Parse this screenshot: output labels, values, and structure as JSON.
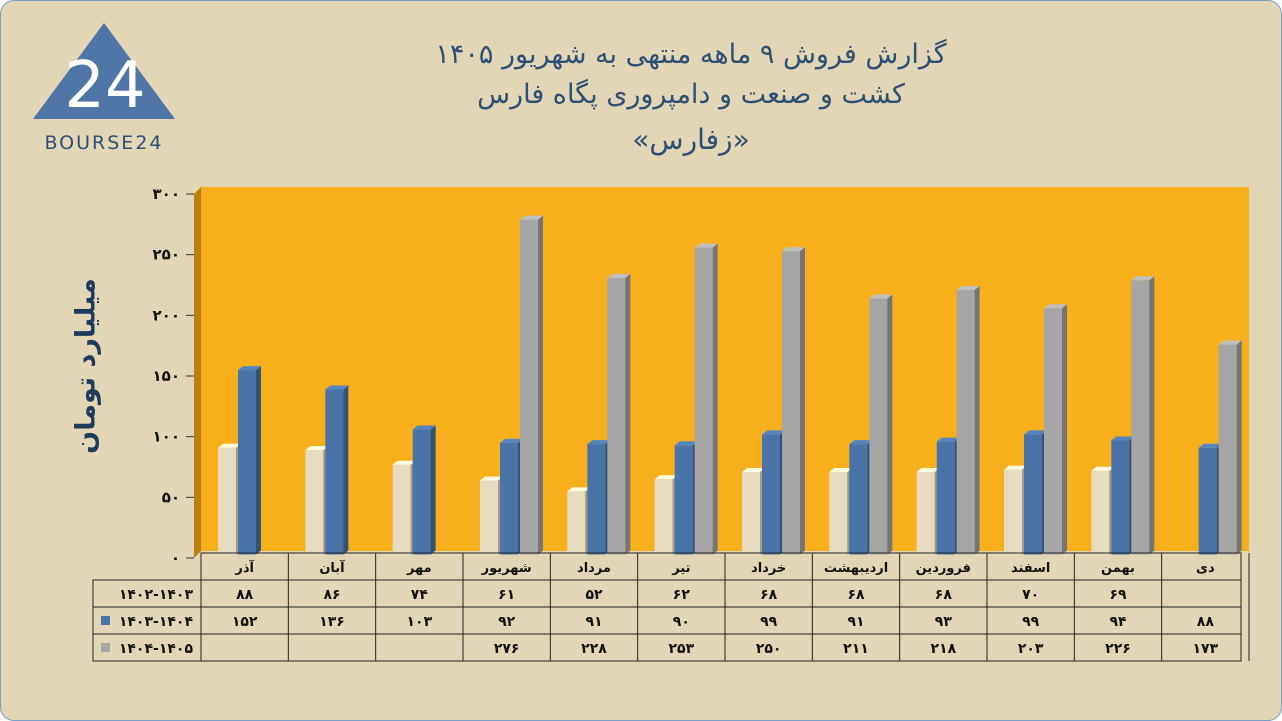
{
  "title": {
    "line1": "گزارش  فروش ۹ ماهه منتهی به شهریور ۱۴۰۵",
    "line2": "کشت و صنعت و دامپروری پگاه فارس",
    "line3": "«زفارس»"
  },
  "logo": {
    "text": "BOURSE24",
    "mark": "24"
  },
  "colors": {
    "background": "#e3d6b7",
    "plot_area": "#f7b01c",
    "series_2025": "#4a74a8",
    "series_2026": "#a6a6a6",
    "series_2024": "#e8dcc0",
    "title": "#2c4f74"
  },
  "chart_data": {
    "type": "bar",
    "ylabel": "میلیارد تومان",
    "ylim": [
      0,
      300
    ],
    "yticks": [
      0,
      50,
      100,
      150,
      200,
      250,
      300
    ],
    "ytick_labels": [
      "۰",
      "۵۰",
      "۱۰۰",
      "۱۵۰",
      "۲۰۰",
      "۲۵۰",
      "۳۰۰"
    ],
    "categories": [
      "دی",
      "بهمن",
      "اسفند",
      "فروردین",
      "اردیبهشت",
      "خرداد",
      "تیر",
      "مرداد",
      "شهریور",
      "مهر",
      "آبان",
      "آذر"
    ],
    "series": [
      {
        "name": "۱۴۰۲-۱۴۰۳",
        "values": [
          null,
          69,
          70,
          68,
          68,
          68,
          62,
          52,
          61,
          74,
          86,
          88
        ],
        "labels": [
          "",
          "۶۹",
          "۷۰",
          "۶۸",
          "۶۸",
          "۶۸",
          "۶۲",
          "۵۲",
          "۶۱",
          "۷۴",
          "۸۶",
          "۸۸"
        ]
      },
      {
        "name": "۱۴۰۳-۱۴۰۴",
        "values": [
          88,
          94,
          99,
          93,
          91,
          99,
          90,
          91,
          92,
          103,
          136,
          152
        ],
        "labels": [
          "۸۸",
          "۹۴",
          "۹۹",
          "۹۳",
          "۹۱",
          "۹۹",
          "۹۰",
          "۹۱",
          "۹۲",
          "۱۰۳",
          "۱۳۶",
          "۱۵۲"
        ]
      },
      {
        "name": "۱۴۰۴-۱۴۰۵",
        "values": [
          173,
          226,
          203,
          218,
          211,
          250,
          253,
          228,
          276,
          null,
          null,
          null
        ],
        "labels": [
          "۱۷۳",
          "۲۲۶",
          "۲۰۳",
          "۲۱۸",
          "۲۱۱",
          "۲۵۰",
          "۲۵۳",
          "۲۲۸",
          "۲۷۶",
          "",
          "",
          ""
        ]
      }
    ],
    "grid": false,
    "legend": "data-table-below"
  }
}
